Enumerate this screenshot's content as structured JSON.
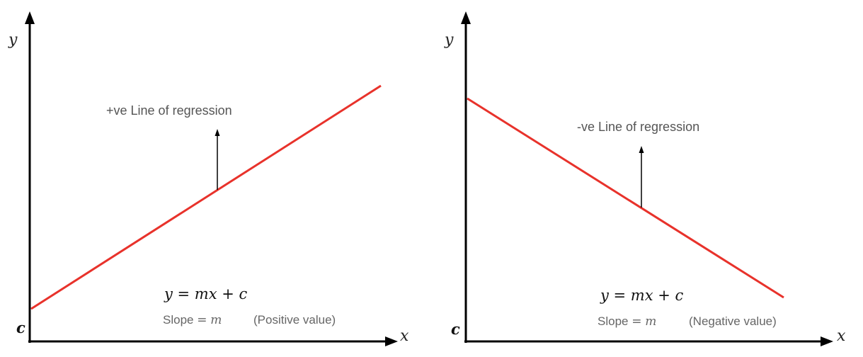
{
  "panels": [
    {
      "axis_x": "x",
      "axis_y": "y",
      "intercept": "c",
      "annotation": "+ve Line of regression",
      "equation": "y = mx + c",
      "slope_label": "Slope",
      "slope_eq": "=",
      "slope_var": "m",
      "slope_note": "(Positive value)",
      "line_color": "#e8322b"
    },
    {
      "axis_x": "x",
      "axis_y": "y",
      "intercept": "c",
      "annotation": "-ve Line of regression",
      "equation": "y = mx + c",
      "slope_label": "Slope",
      "slope_eq": "=",
      "slope_var": "m",
      "slope_note": "(Negative value)",
      "line_color": "#e8322b"
    }
  ]
}
